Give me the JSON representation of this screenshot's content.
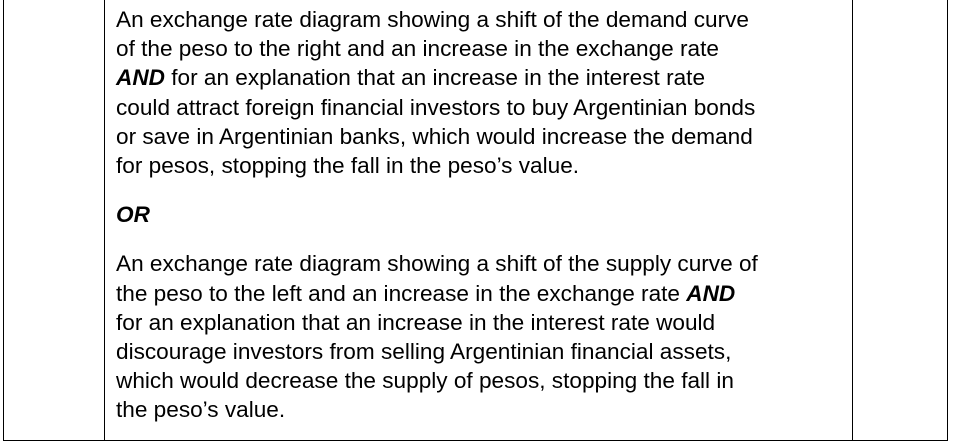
{
  "mark_scheme": {
    "option_a": {
      "line1": "An exchange rate diagram showing a shift of the demand curve",
      "line2": "of the peso to the right and an increase in the exchange rate",
      "line3_keyword": "AND",
      "line3_rest": " for an explanation that an increase in the interest rate",
      "line4": "could attract foreign financial investors to buy Argentinian bonds",
      "line5": "or save in Argentinian banks, which would increase the demand",
      "line6": "for pesos, stopping the fall in the peso’s value."
    },
    "separator": "OR",
    "option_b": {
      "line1": "An exchange rate diagram showing a shift of the supply curve of",
      "line2_start": "the peso to the left and an increase in the exchange rate ",
      "line2_keyword": "AND",
      "line3": "for an explanation that an increase in the interest rate would",
      "line4": "discourage investors from selling Argentinian financial assets,",
      "line5": "which would decrease the supply of pesos, stopping the fall in",
      "line6": "the peso’s value."
    }
  }
}
